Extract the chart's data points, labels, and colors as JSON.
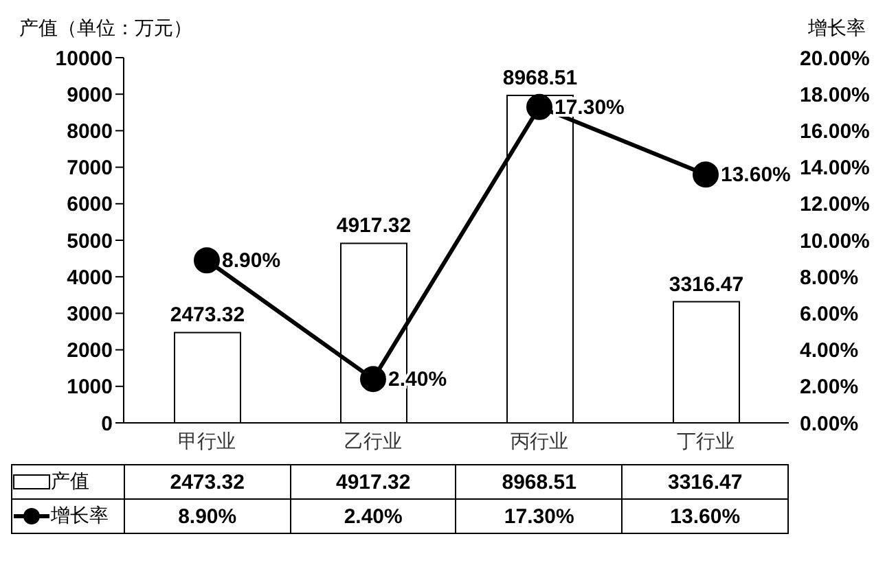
{
  "chart_data": {
    "type": "bar",
    "ylabel": "产值（单位：万元）",
    "y2label": "增长率",
    "categories": [
      "甲行业",
      "乙行业",
      "丙行业",
      "丁行业"
    ],
    "series": [
      {
        "name": "产值",
        "color": "#ffffff",
        "values": [
          2473.32,
          4917.32,
          8968.51,
          3316.47
        ],
        "value_labels": [
          "2473.32",
          "4917.32",
          "8968.51",
          "3316.47"
        ]
      },
      {
        "name": "增长率",
        "type": "line",
        "axis": "y2",
        "color": "#000000",
        "marker": "circle",
        "values": [
          8.9,
          2.4,
          17.3,
          13.6
        ],
        "value_labels": [
          "8.90%",
          "2.40%",
          "17.30%",
          "13.60%"
        ]
      }
    ],
    "ylim": [
      0,
      10000
    ],
    "yticks": [
      0,
      1000,
      2000,
      3000,
      4000,
      5000,
      6000,
      7000,
      8000,
      9000,
      10000
    ],
    "y2lim": [
      0,
      20
    ],
    "y2ticks": [
      {
        "value": 0,
        "label": "0.00%"
      },
      {
        "value": 2,
        "label": "2.00%"
      },
      {
        "value": 4,
        "label": "4.00%"
      },
      {
        "value": 6,
        "label": "6.00%"
      },
      {
        "value": 8,
        "label": "8.00%"
      },
      {
        "value": 10,
        "label": "10.00%"
      },
      {
        "value": 12,
        "label": "12.00%"
      },
      {
        "value": 14,
        "label": "14.00%"
      },
      {
        "value": 16,
        "label": "16.00%"
      },
      {
        "value": 18,
        "label": "18.00%"
      },
      {
        "value": 20,
        "label": "20.00%"
      }
    ],
    "legend": "bottom",
    "grid": false
  }
}
